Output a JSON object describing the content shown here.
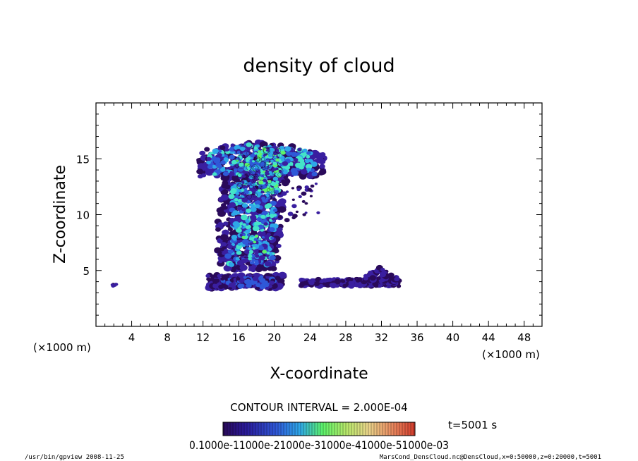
{
  "chart_data": {
    "type": "heatmap",
    "title": "density of cloud",
    "xlabel": "X-coordinate",
    "ylabel": "Z-coordinate",
    "x_unit": "(×1000 m)",
    "z_unit": "(×1000 m)",
    "xlim": [
      0,
      50
    ],
    "ylim": [
      0,
      20
    ],
    "x_ticks": [
      4,
      8,
      12,
      16,
      20,
      24,
      28,
      32,
      36,
      40,
      44,
      48
    ],
    "y_ticks": [
      5,
      10,
      15
    ],
    "contour_interval": "CONTOUR INTERVAL = 2.000E-04",
    "time_label": "t=5001 s",
    "colorbar_labels": "0.1000e-11000e-21000e-31000e-41000e-51000e-03",
    "colormap": [
      "#2a0a5a",
      "#3a1fa0",
      "#2f59d8",
      "#2ea7e8",
      "#44e4c8",
      "#5cf26a",
      "#b6e86a",
      "#e9d38a",
      "#e98a60",
      "#d23a2a"
    ],
    "cloud_regions": [
      {
        "name": "upper anvil",
        "x": [
          11.5,
          25
        ],
        "z": [
          13.5,
          17.2
        ],
        "level": "high"
      },
      {
        "name": "core column",
        "x": [
          13.5,
          21.5
        ],
        "z": [
          5,
          13
        ],
        "level": "medium"
      },
      {
        "name": "low layer",
        "x": [
          23,
          34
        ],
        "z": [
          3.6,
          5.3
        ],
        "level": "low"
      },
      {
        "name": "base patch",
        "x": [
          12.5,
          21
        ],
        "z": [
          3.4,
          4.6
        ],
        "level": "low-medium"
      }
    ]
  },
  "footer": {
    "left": "/usr/bin/gpview   2008-11-25",
    "right": "MarsCond_DensCloud.nc@DensCloud,x=0:50000,z=0:20000,t=5001"
  }
}
